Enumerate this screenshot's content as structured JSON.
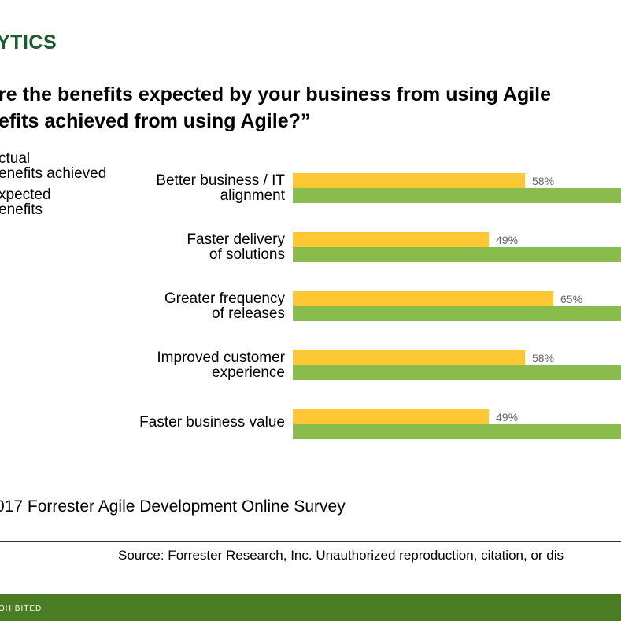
{
  "header": {
    "brand": "YTICS",
    "question_line1": "re the benefits expected by your business from using Agile",
    "question_line2": "efits achieved from using Agile?”"
  },
  "legend": {
    "actual_line1": "ctual",
    "actual_line2": "enefits achieved",
    "expected_line1": "xpected",
    "expected_line2": "enefits"
  },
  "colors": {
    "actual": "#fdc834",
    "expected": "#8abb4d",
    "brand": "#1d5a2e",
    "footer": "#4a7c23"
  },
  "chart_data": {
    "type": "bar",
    "orientation": "horizontal",
    "categories": [
      {
        "line1": "Better business / IT",
        "line2": "alignment"
      },
      {
        "line1": "Faster delivery",
        "line2": "of solutions"
      },
      {
        "line1": "Greater frequency",
        "line2": "of releases"
      },
      {
        "line1": "Improved customer",
        "line2": "experience"
      },
      {
        "line1": "Faster business value",
        "line2": ""
      }
    ],
    "series": [
      {
        "name": "Actual benefits achieved",
        "values": [
          58,
          49,
          65,
          58,
          49
        ],
        "labels": [
          "58%",
          "49%",
          "65%",
          "58%",
          "49%"
        ]
      },
      {
        "name": "Expected benefits",
        "values": [
          null,
          null,
          null,
          null,
          null
        ]
      }
    ],
    "xlim": [
      0,
      100
    ],
    "grid": false,
    "legend_position": "left"
  },
  "footer": {
    "base_note": "017 Forrester Agile Development Online Survey",
    "source": "Source: Forrester Research, Inc. Unauthorized reproduction, citation, or dis",
    "band_text": "OHIBITED."
  }
}
